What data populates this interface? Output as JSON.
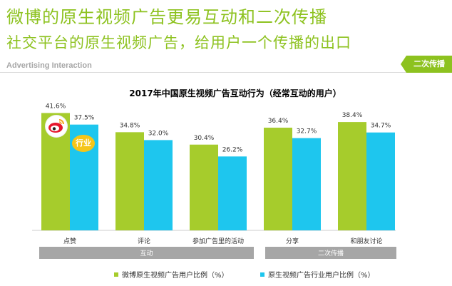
{
  "header": {
    "title_line1": "微博的原生视频广告更易互动和二次传播",
    "title_line2": "社交平台的原生视频广告，给用户一个传播的出口",
    "subtitle_en": "Advertising Interaction",
    "tag_label": "二次传播"
  },
  "colors": {
    "weibo": "#a6cc2c",
    "industry": "#1ec6ee",
    "group_bar": "#a6a6a6",
    "title": "#8dc21f"
  },
  "icons": {
    "brand": "weibo-logo-icon",
    "badge_label": "行业"
  },
  "chart_data": {
    "type": "bar",
    "title": "2017年中国原生视频广告互动行为（经常互动的用户）",
    "categories": [
      "点赞",
      "评论",
      "参加广告里的活动",
      "分享",
      "和朋友讨论"
    ],
    "groups": [
      {
        "label": "互动",
        "categories": [
          "点赞",
          "评论",
          "参加广告里的活动"
        ]
      },
      {
        "label": "二次传播",
        "categories": [
          "分享",
          "和朋友讨论"
        ]
      }
    ],
    "series": [
      {
        "name": "微博原生视频广告用户比例（%）",
        "values": [
          41.6,
          34.8,
          30.4,
          36.4,
          38.4
        ]
      },
      {
        "name": "原生视频广告行业用户比例（%）",
        "values": [
          37.5,
          32.0,
          26.2,
          32.7,
          34.7
        ]
      }
    ],
    "value_suffix": "%",
    "ylim": [
      0,
      45
    ],
    "grid": false,
    "legend_position": "bottom"
  }
}
